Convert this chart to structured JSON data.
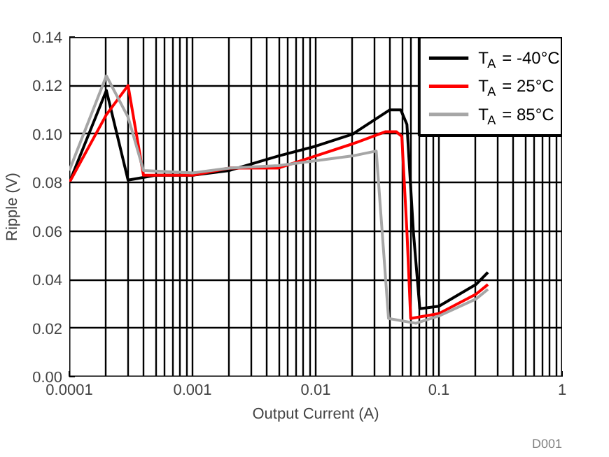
{
  "chart_data": {
    "type": "line",
    "xlabel": "Output Current (A)",
    "ylabel": "Ripple (V)",
    "log": "x",
    "xlim": [
      0.0001,
      1
    ],
    "xticks": [
      {
        "value": 0.0001,
        "label": "0.0001"
      },
      {
        "value": 0.001,
        "label": "0.001"
      },
      {
        "value": 0.01,
        "label": "0.01"
      },
      {
        "value": 0.1,
        "label": "0.1"
      },
      1
    ],
    "ylim": [
      0,
      0.14
    ],
    "yticks": [
      {
        "value": 0,
        "label": "0.00"
      },
      {
        "value": 0.02,
        "label": "0.02"
      },
      {
        "value": 0.04,
        "label": "0.04"
      },
      {
        "value": 0.06,
        "label": "0.06"
      },
      {
        "value": 0.08,
        "label": "0.08"
      },
      {
        "value": 0.1,
        "label": "0.10"
      },
      {
        "value": 0.12,
        "label": "0.12"
      },
      {
        "value": 0.14,
        "label": "0.14"
      }
    ],
    "grid": true,
    "legend": "top right",
    "annotations": [
      "D001"
    ],
    "series": [
      {
        "name": "T$_{A}$ = -40°C",
        "color": "#000000",
        "x": [
          0.0001,
          0.0002,
          0.0003,
          0.0005,
          0.001,
          0.002,
          0.005,
          0.01,
          0.02,
          0.04,
          0.049,
          0.055,
          0.062,
          0.07,
          0.1,
          0.2,
          0.25
        ],
        "values": [
          0.08,
          0.118,
          0.081,
          0.083,
          0.083,
          0.085,
          0.091,
          0.095,
          0.1,
          0.11,
          0.11,
          0.104,
          0.06,
          0.028,
          0.029,
          0.038,
          0.043
        ]
      },
      {
        "name": "T$_{A}$ = 25°C",
        "color": "#ff0000",
        "x": [
          0.0001,
          0.0002,
          0.0003,
          0.0004,
          0.001,
          0.002,
          0.005,
          0.01,
          0.02,
          0.037,
          0.045,
          0.05,
          0.055,
          0.059,
          0.1,
          0.2,
          0.25
        ],
        "values": [
          0.08,
          0.108,
          0.12,
          0.083,
          0.083,
          0.086,
          0.086,
          0.091,
          0.096,
          0.101,
          0.101,
          0.099,
          0.06,
          0.024,
          0.026,
          0.034,
          0.038
        ]
      },
      {
        "name": "T$_{A}$ = 85°C",
        "color": "#a6a6a6",
        "x": [
          0.0001,
          0.0002,
          0.0003,
          0.0004,
          0.001,
          0.002,
          0.005,
          0.01,
          0.02,
          0.031,
          0.039,
          0.065,
          0.1,
          0.2,
          0.25
        ],
        "values": [
          0.085,
          0.124,
          0.107,
          0.085,
          0.084,
          0.086,
          0.087,
          0.089,
          0.091,
          0.093,
          0.024,
          0.022,
          0.025,
          0.032,
          0.036
        ]
      }
    ]
  }
}
